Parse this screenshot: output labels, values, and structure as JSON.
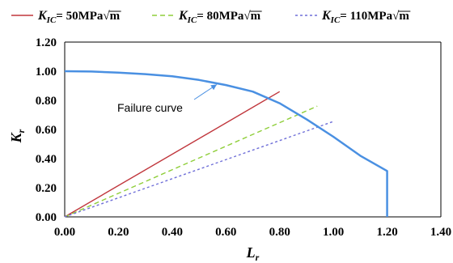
{
  "chart_data": {
    "type": "line",
    "legend_position": "top",
    "x_axis": {
      "label": "L",
      "label_subscript": "r",
      "range": [
        0,
        1.4
      ],
      "ticks": [
        "0.00",
        "0.20",
        "0.40",
        "0.60",
        "0.80",
        "1.00",
        "1.20",
        "1.40"
      ]
    },
    "y_axis": {
      "label": "K",
      "label_subscript": "r",
      "range": [
        0,
        1.2
      ],
      "ticks": [
        "0.00",
        "0.20",
        "0.40",
        "0.60",
        "0.80",
        "1.00",
        "1.20"
      ]
    },
    "grid": false,
    "series": [
      {
        "name": "K_IC= 50MPa√m",
        "legend_k": "K",
        "legend_sub": "IC",
        "legend_rest": "= 50MPa",
        "legend_unit": "m",
        "color": "#c0363c",
        "dash": "solid",
        "points": [
          [
            0,
            0
          ],
          [
            0.8,
            0.86
          ]
        ]
      },
      {
        "name": "K_IC= 80MPa√m",
        "legend_k": "K",
        "legend_sub": "IC",
        "legend_rest": "= 80MPa",
        "legend_unit": "m",
        "color": "#8fce3a",
        "dash": "dashed",
        "points": [
          [
            0,
            0
          ],
          [
            0.94,
            0.76
          ]
        ]
      },
      {
        "name": "K_IC= 110MPa√m",
        "legend_k": "K",
        "legend_sub": "IC",
        "legend_rest": "= 110MPa",
        "legend_unit": "m",
        "color": "#6f6fd8",
        "dash": "dotted",
        "points": [
          [
            0,
            0
          ],
          [
            1.0,
            0.655
          ]
        ]
      }
    ],
    "failure_curve": {
      "color": "#4a90e2",
      "points": [
        [
          0,
          1.0
        ],
        [
          0.1,
          0.998
        ],
        [
          0.2,
          0.99
        ],
        [
          0.3,
          0.98
        ],
        [
          0.4,
          0.965
        ],
        [
          0.5,
          0.94
        ],
        [
          0.6,
          0.905
        ],
        [
          0.7,
          0.86
        ],
        [
          0.8,
          0.78
        ],
        [
          0.9,
          0.67
        ],
        [
          1.0,
          0.55
        ],
        [
          1.1,
          0.42
        ],
        [
          1.2,
          0.315
        ],
        [
          1.2,
          0
        ]
      ]
    },
    "annotation": {
      "text": "Failure curve",
      "arrow_target": [
        0.56,
        0.92
      ]
    }
  }
}
